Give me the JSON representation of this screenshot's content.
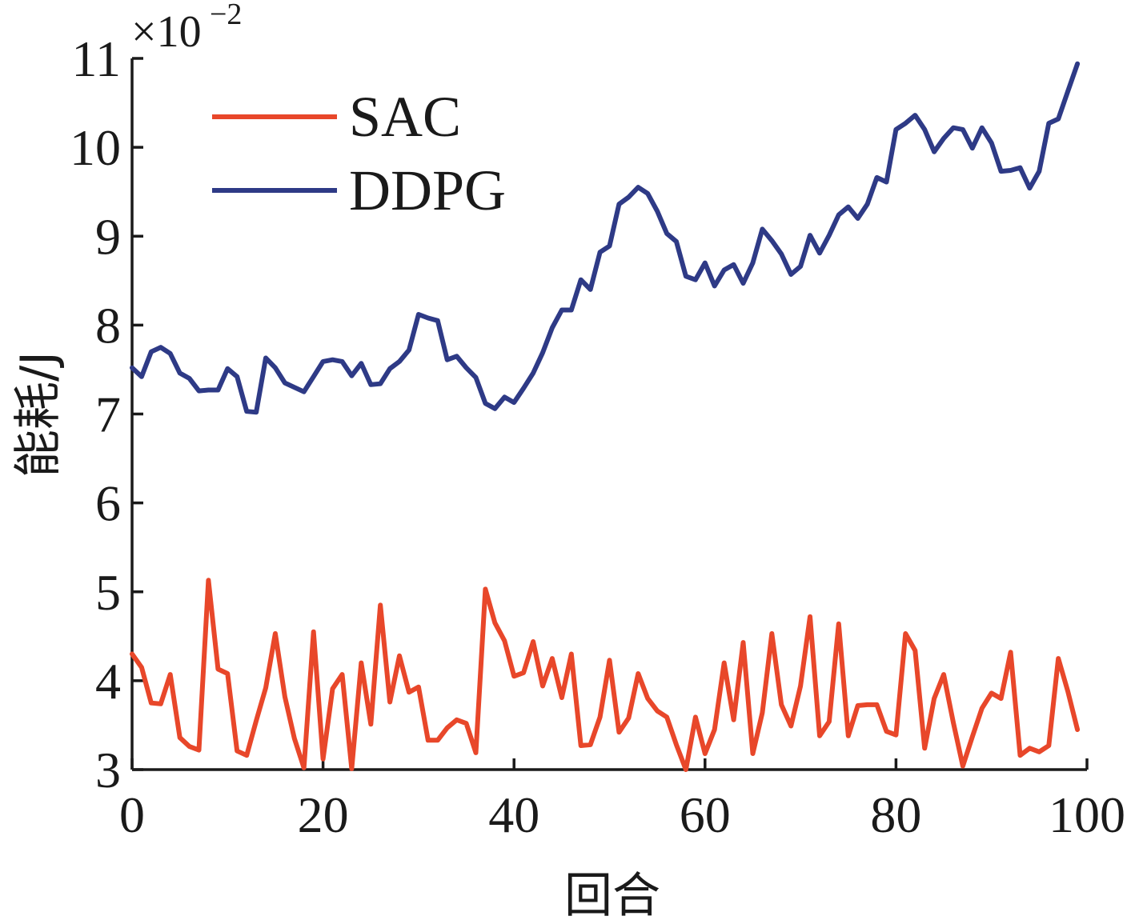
{
  "chart_data": {
    "type": "line",
    "title": "",
    "xlabel": "回合",
    "ylabel": "能耗/J",
    "exponent": {
      "base": "×10",
      "power": "−2"
    },
    "xlim": [
      0,
      100
    ],
    "ylim": [
      3,
      11
    ],
    "xticks": [
      0,
      20,
      40,
      60,
      80,
      100
    ],
    "yticks": [
      3,
      4,
      5,
      6,
      7,
      8,
      9,
      10,
      11
    ],
    "grid": false,
    "legend_position": "top-left",
    "x": [
      0,
      1,
      2,
      3,
      4,
      5,
      6,
      7,
      8,
      9,
      10,
      11,
      12,
      13,
      14,
      15,
      16,
      17,
      18,
      19,
      20,
      21,
      22,
      23,
      24,
      25,
      26,
      27,
      28,
      29,
      30,
      31,
      32,
      33,
      34,
      35,
      36,
      37,
      38,
      39,
      40,
      41,
      42,
      43,
      44,
      45,
      46,
      47,
      48,
      49,
      50,
      51,
      52,
      53,
      54,
      55,
      56,
      57,
      58,
      59,
      60,
      61,
      62,
      63,
      64,
      65,
      66,
      67,
      68,
      69,
      70,
      71,
      72,
      73,
      74,
      75,
      76,
      77,
      78,
      79,
      80,
      81,
      82,
      83,
      84,
      85,
      86,
      87,
      88,
      89,
      90,
      91,
      92,
      93,
      94,
      95,
      96,
      97,
      98,
      99
    ],
    "series": [
      {
        "name": "SAC",
        "color": "#e8472a",
        "values": [
          4.3,
          4.15,
          3.75,
          3.74,
          4.07,
          3.36,
          3.26,
          3.22,
          5.13,
          4.13,
          4.08,
          3.21,
          3.16,
          3.55,
          3.92,
          4.53,
          3.82,
          3.35,
          3.02,
          4.55,
          3.12,
          3.91,
          4.07,
          3.01,
          4.2,
          3.51,
          4.85,
          3.76,
          4.28,
          3.87,
          3.93,
          3.33,
          3.33,
          3.47,
          3.56,
          3.52,
          3.19,
          5.03,
          4.65,
          4.45,
          4.05,
          4.09,
          4.44,
          3.94,
          4.25,
          3.81,
          4.3,
          3.27,
          3.28,
          3.59,
          4.23,
          3.42,
          3.58,
          4.08,
          3.8,
          3.66,
          3.59,
          3.28,
          3.0,
          3.59,
          3.18,
          3.45,
          4.2,
          3.56,
          4.43,
          3.18,
          3.64,
          4.53,
          3.73,
          3.49,
          3.94,
          4.72,
          3.38,
          3.54,
          4.64,
          3.38,
          3.72,
          3.73,
          3.73,
          3.43,
          3.39,
          4.53,
          4.34,
          3.24,
          3.8,
          4.07,
          3.53,
          3.04,
          3.37,
          3.69,
          3.86,
          3.8,
          4.32,
          3.16,
          3.24,
          3.2,
          3.27,
          4.25,
          3.88,
          3.45
        ]
      },
      {
        "name": "DDPG",
        "color": "#2e3a86",
        "values": [
          7.52,
          7.42,
          7.7,
          7.75,
          7.68,
          7.46,
          7.4,
          7.26,
          7.27,
          7.27,
          7.51,
          7.42,
          7.03,
          7.02,
          7.63,
          7.52,
          7.35,
          7.3,
          7.25,
          7.42,
          7.59,
          7.61,
          7.59,
          7.43,
          7.57,
          7.33,
          7.34,
          7.51,
          7.59,
          7.72,
          8.12,
          8.08,
          8.05,
          7.61,
          7.65,
          7.52,
          7.41,
          7.12,
          7.06,
          7.19,
          7.13,
          7.29,
          7.46,
          7.69,
          7.97,
          8.17,
          8.17,
          8.51,
          8.4,
          8.82,
          8.89,
          9.36,
          9.44,
          9.55,
          9.48,
          9.28,
          9.03,
          8.94,
          8.55,
          8.51,
          8.7,
          8.44,
          8.62,
          8.68,
          8.47,
          8.7,
          9.08,
          8.95,
          8.8,
          8.57,
          8.66,
          9.01,
          8.81,
          9.01,
          9.24,
          9.33,
          9.2,
          9.36,
          9.66,
          9.61,
          10.2,
          10.27,
          10.36,
          10.2,
          9.95,
          10.1,
          10.22,
          10.2,
          9.99,
          10.22,
          10.05,
          9.73,
          9.74,
          9.77,
          9.54,
          9.73,
          10.27,
          10.32,
          10.63,
          10.94
        ]
      }
    ]
  }
}
